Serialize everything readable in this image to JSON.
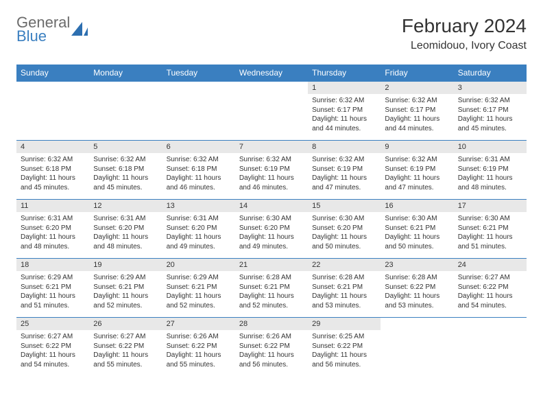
{
  "logo": {
    "general": "General",
    "blue": "Blue",
    "sail_color": "#2d6fb0",
    "text_gray": "#6b6b6b",
    "text_blue": "#3a7fc0"
  },
  "title": "February 2024",
  "location": "Leomidouo, Ivory Coast",
  "colors": {
    "header_bg": "#3a7fc0",
    "header_text": "#ffffff",
    "date_bg": "#e8e8e8",
    "border": "#3a7fc0",
    "text": "#333333"
  },
  "day_names": [
    "Sunday",
    "Monday",
    "Tuesday",
    "Wednesday",
    "Thursday",
    "Friday",
    "Saturday"
  ],
  "weeks": [
    {
      "dates": [
        "",
        "",
        "",
        "",
        "1",
        "2",
        "3"
      ],
      "cells": [
        null,
        null,
        null,
        null,
        {
          "sunrise": "Sunrise: 6:32 AM",
          "sunset": "Sunset: 6:17 PM",
          "day1": "Daylight: 11 hours",
          "day2": "and 44 minutes."
        },
        {
          "sunrise": "Sunrise: 6:32 AM",
          "sunset": "Sunset: 6:17 PM",
          "day1": "Daylight: 11 hours",
          "day2": "and 44 minutes."
        },
        {
          "sunrise": "Sunrise: 6:32 AM",
          "sunset": "Sunset: 6:17 PM",
          "day1": "Daylight: 11 hours",
          "day2": "and 45 minutes."
        }
      ]
    },
    {
      "dates": [
        "4",
        "5",
        "6",
        "7",
        "8",
        "9",
        "10"
      ],
      "cells": [
        {
          "sunrise": "Sunrise: 6:32 AM",
          "sunset": "Sunset: 6:18 PM",
          "day1": "Daylight: 11 hours",
          "day2": "and 45 minutes."
        },
        {
          "sunrise": "Sunrise: 6:32 AM",
          "sunset": "Sunset: 6:18 PM",
          "day1": "Daylight: 11 hours",
          "day2": "and 45 minutes."
        },
        {
          "sunrise": "Sunrise: 6:32 AM",
          "sunset": "Sunset: 6:18 PM",
          "day1": "Daylight: 11 hours",
          "day2": "and 46 minutes."
        },
        {
          "sunrise": "Sunrise: 6:32 AM",
          "sunset": "Sunset: 6:19 PM",
          "day1": "Daylight: 11 hours",
          "day2": "and 46 minutes."
        },
        {
          "sunrise": "Sunrise: 6:32 AM",
          "sunset": "Sunset: 6:19 PM",
          "day1": "Daylight: 11 hours",
          "day2": "and 47 minutes."
        },
        {
          "sunrise": "Sunrise: 6:32 AM",
          "sunset": "Sunset: 6:19 PM",
          "day1": "Daylight: 11 hours",
          "day2": "and 47 minutes."
        },
        {
          "sunrise": "Sunrise: 6:31 AM",
          "sunset": "Sunset: 6:19 PM",
          "day1": "Daylight: 11 hours",
          "day2": "and 48 minutes."
        }
      ]
    },
    {
      "dates": [
        "11",
        "12",
        "13",
        "14",
        "15",
        "16",
        "17"
      ],
      "cells": [
        {
          "sunrise": "Sunrise: 6:31 AM",
          "sunset": "Sunset: 6:20 PM",
          "day1": "Daylight: 11 hours",
          "day2": "and 48 minutes."
        },
        {
          "sunrise": "Sunrise: 6:31 AM",
          "sunset": "Sunset: 6:20 PM",
          "day1": "Daylight: 11 hours",
          "day2": "and 48 minutes."
        },
        {
          "sunrise": "Sunrise: 6:31 AM",
          "sunset": "Sunset: 6:20 PM",
          "day1": "Daylight: 11 hours",
          "day2": "and 49 minutes."
        },
        {
          "sunrise": "Sunrise: 6:30 AM",
          "sunset": "Sunset: 6:20 PM",
          "day1": "Daylight: 11 hours",
          "day2": "and 49 minutes."
        },
        {
          "sunrise": "Sunrise: 6:30 AM",
          "sunset": "Sunset: 6:20 PM",
          "day1": "Daylight: 11 hours",
          "day2": "and 50 minutes."
        },
        {
          "sunrise": "Sunrise: 6:30 AM",
          "sunset": "Sunset: 6:21 PM",
          "day1": "Daylight: 11 hours",
          "day2": "and 50 minutes."
        },
        {
          "sunrise": "Sunrise: 6:30 AM",
          "sunset": "Sunset: 6:21 PM",
          "day1": "Daylight: 11 hours",
          "day2": "and 51 minutes."
        }
      ]
    },
    {
      "dates": [
        "18",
        "19",
        "20",
        "21",
        "22",
        "23",
        "24"
      ],
      "cells": [
        {
          "sunrise": "Sunrise: 6:29 AM",
          "sunset": "Sunset: 6:21 PM",
          "day1": "Daylight: 11 hours",
          "day2": "and 51 minutes."
        },
        {
          "sunrise": "Sunrise: 6:29 AM",
          "sunset": "Sunset: 6:21 PM",
          "day1": "Daylight: 11 hours",
          "day2": "and 52 minutes."
        },
        {
          "sunrise": "Sunrise: 6:29 AM",
          "sunset": "Sunset: 6:21 PM",
          "day1": "Daylight: 11 hours",
          "day2": "and 52 minutes."
        },
        {
          "sunrise": "Sunrise: 6:28 AM",
          "sunset": "Sunset: 6:21 PM",
          "day1": "Daylight: 11 hours",
          "day2": "and 52 minutes."
        },
        {
          "sunrise": "Sunrise: 6:28 AM",
          "sunset": "Sunset: 6:21 PM",
          "day1": "Daylight: 11 hours",
          "day2": "and 53 minutes."
        },
        {
          "sunrise": "Sunrise: 6:28 AM",
          "sunset": "Sunset: 6:22 PM",
          "day1": "Daylight: 11 hours",
          "day2": "and 53 minutes."
        },
        {
          "sunrise": "Sunrise: 6:27 AM",
          "sunset": "Sunset: 6:22 PM",
          "day1": "Daylight: 11 hours",
          "day2": "and 54 minutes."
        }
      ]
    },
    {
      "dates": [
        "25",
        "26",
        "27",
        "28",
        "29",
        "",
        ""
      ],
      "cells": [
        {
          "sunrise": "Sunrise: 6:27 AM",
          "sunset": "Sunset: 6:22 PM",
          "day1": "Daylight: 11 hours",
          "day2": "and 54 minutes."
        },
        {
          "sunrise": "Sunrise: 6:27 AM",
          "sunset": "Sunset: 6:22 PM",
          "day1": "Daylight: 11 hours",
          "day2": "and 55 minutes."
        },
        {
          "sunrise": "Sunrise: 6:26 AM",
          "sunset": "Sunset: 6:22 PM",
          "day1": "Daylight: 11 hours",
          "day2": "and 55 minutes."
        },
        {
          "sunrise": "Sunrise: 6:26 AM",
          "sunset": "Sunset: 6:22 PM",
          "day1": "Daylight: 11 hours",
          "day2": "and 56 minutes."
        },
        {
          "sunrise": "Sunrise: 6:25 AM",
          "sunset": "Sunset: 6:22 PM",
          "day1": "Daylight: 11 hours",
          "day2": "and 56 minutes."
        },
        null,
        null
      ]
    }
  ]
}
